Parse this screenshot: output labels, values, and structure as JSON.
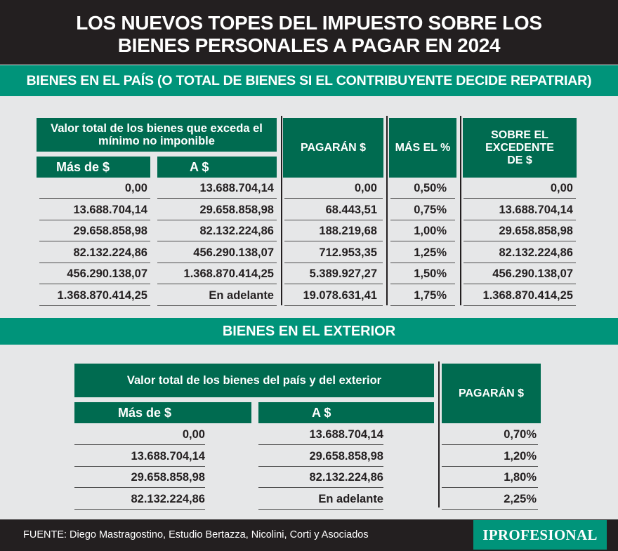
{
  "title": {
    "line1": "LOS NUEVOS TOPES DEL IMPUESTO SOBRE LOS",
    "line2": "BIENES PERSONALES A PAGAR EN 2024"
  },
  "section1": {
    "heading": "BIENES EN EL PAÍS (O TOTAL DE BIENES SI EL CONTRIBUYENTE DECIDE REPATRIAR)",
    "group_header": "Valor total de los bienes que exceda el mínimo no imponible",
    "col_from": "Más de $",
    "col_to": "A $",
    "col_pay": "PAGARÁN $",
    "col_pct": "MÁS EL %",
    "col_excess": "SOBRE EL EXCEDENTE DE $",
    "rows": [
      [
        "0,00",
        "13.688.704,14",
        "0,00",
        "0,50%",
        "0,00"
      ],
      [
        "13.688.704,14",
        "29.658.858,98",
        "68.443,51",
        "0,75%",
        "13.688.704,14"
      ],
      [
        "29.658.858,98",
        "82.132.224,86",
        "188.219,68",
        "1,00%",
        "29.658.858,98"
      ],
      [
        "82.132.224,86",
        "456.290.138,07",
        "712.953,35",
        "1,25%",
        "82.132.224,86"
      ],
      [
        "456.290.138,07",
        "1.368.870.414,25",
        "5.389.927,27",
        "1,50%",
        "456.290.138,07"
      ],
      [
        "1.368.870.414,25",
        "En adelante",
        "19.078.631,41",
        "1,75%",
        "1.368.870.414,25"
      ]
    ]
  },
  "section2": {
    "heading": "BIENES EN EL EXTERIOR",
    "group_header": "Valor total de los bienes del país y del exterior",
    "col_from": "Más de $",
    "col_to": "A $",
    "col_pay": "PAGARÁN $",
    "rows": [
      [
        "0,00",
        "13.688.704,14",
        "0,70%"
      ],
      [
        "13.688.704,14",
        "29.658.858,98",
        "1,20%"
      ],
      [
        "29.658.858,98",
        "82.132.224,86",
        "1,80%"
      ],
      [
        "82.132.224,86",
        "En adelante",
        "2,25%"
      ]
    ]
  },
  "footer": {
    "source": "FUENTE: Diego Mastragostino, Estudio Bertazza, Nicolini, Corti y Asociados",
    "logo": "IPROFESIONAL"
  },
  "colors": {
    "dark": "#231f20",
    "green_band": "#00947a",
    "green_header": "#006b50",
    "background": "#e6e7e8"
  }
}
